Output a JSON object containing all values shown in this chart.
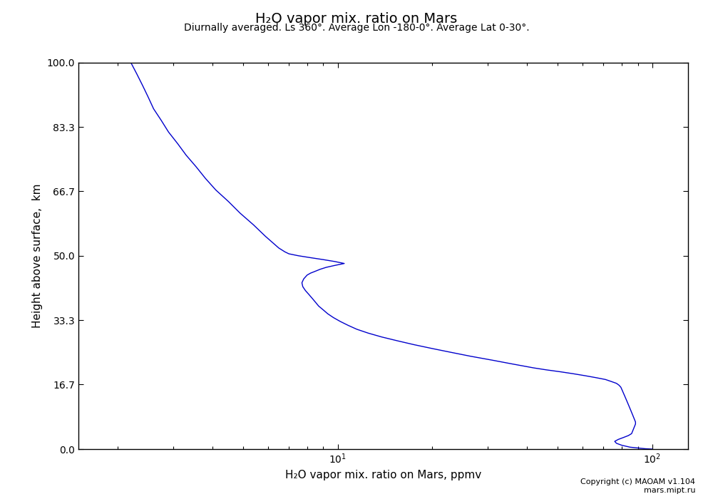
{
  "title": "H₂O vapor mix. ratio on Mars",
  "subtitle": "Diurnally averaged. Ls 360°. Average Lon -180-0°. Average Lat 0-30°.",
  "xlabel": "H₂O vapor mix. ratio on Mars, ppmv",
  "ylabel": "Height above surface,  km",
  "copyright": "Copyright (c) MAOAM v1.104\nmars.mipt.ru",
  "xlim_log": [
    1.5,
    130.0
  ],
  "ylim": [
    0.0,
    100.0
  ],
  "line_color": "#0000cc",
  "bg_color": "#ffffff",
  "yticks": [
    0.0,
    16.7,
    33.3,
    50.0,
    66.7,
    83.3,
    100.0
  ],
  "profile": {
    "height": [
      100.0,
      97.0,
      94.0,
      91.0,
      88.0,
      85.0,
      82.0,
      79.0,
      76.0,
      73.0,
      70.0,
      67.0,
      64.0,
      61.0,
      58.0,
      55.0,
      52.0,
      51.0,
      50.5,
      50.0,
      49.5,
      49.0,
      48.5,
      48.0,
      47.5,
      47.0,
      46.5,
      46.0,
      45.5,
      45.0,
      44.0,
      43.0,
      42.0,
      41.0,
      40.0,
      39.0,
      38.0,
      37.0,
      36.0,
      35.0,
      34.0,
      33.0,
      32.0,
      31.0,
      30.0,
      29.0,
      28.0,
      27.0,
      26.0,
      25.0,
      24.0,
      23.0,
      22.0,
      21.0,
      20.5,
      20.0,
      19.5,
      19.0,
      18.5,
      18.0,
      17.5,
      17.0,
      16.5,
      16.0,
      15.5,
      15.0,
      14.0,
      13.0,
      12.0,
      11.0,
      10.0,
      9.0,
      8.5,
      8.0,
      7.5,
      7.0,
      6.5,
      6.0,
      5.5,
      5.0,
      4.5,
      4.0,
      3.5,
      3.0,
      2.5,
      2.0,
      1.5,
      1.0,
      0.5,
      0.1,
      0.0
    ],
    "ppmv": [
      2.2,
      2.3,
      2.4,
      2.5,
      2.6,
      2.75,
      2.9,
      3.1,
      3.3,
      3.55,
      3.8,
      4.1,
      4.5,
      4.9,
      5.4,
      5.9,
      6.5,
      6.8,
      7.0,
      7.5,
      8.2,
      9.0,
      9.8,
      10.5,
      9.8,
      9.2,
      8.8,
      8.5,
      8.2,
      8.0,
      7.8,
      7.7,
      7.75,
      7.9,
      8.1,
      8.3,
      8.5,
      8.7,
      9.0,
      9.3,
      9.7,
      10.2,
      10.8,
      11.5,
      12.5,
      13.8,
      15.5,
      17.5,
      20.0,
      23.0,
      26.5,
      31.0,
      36.0,
      42.0,
      46.0,
      51.0,
      56.0,
      61.0,
      66.0,
      71.0,
      74.0,
      77.0,
      78.5,
      79.5,
      80.0,
      80.5,
      81.5,
      82.5,
      83.5,
      84.5,
      85.5,
      86.5,
      87.0,
      87.5,
      88.0,
      88.5,
      88.5,
      88.0,
      87.5,
      87.0,
      86.5,
      86.0,
      84.0,
      81.0,
      78.0,
      76.0,
      77.0,
      80.0,
      85.0,
      95.0,
      100.0
    ]
  }
}
